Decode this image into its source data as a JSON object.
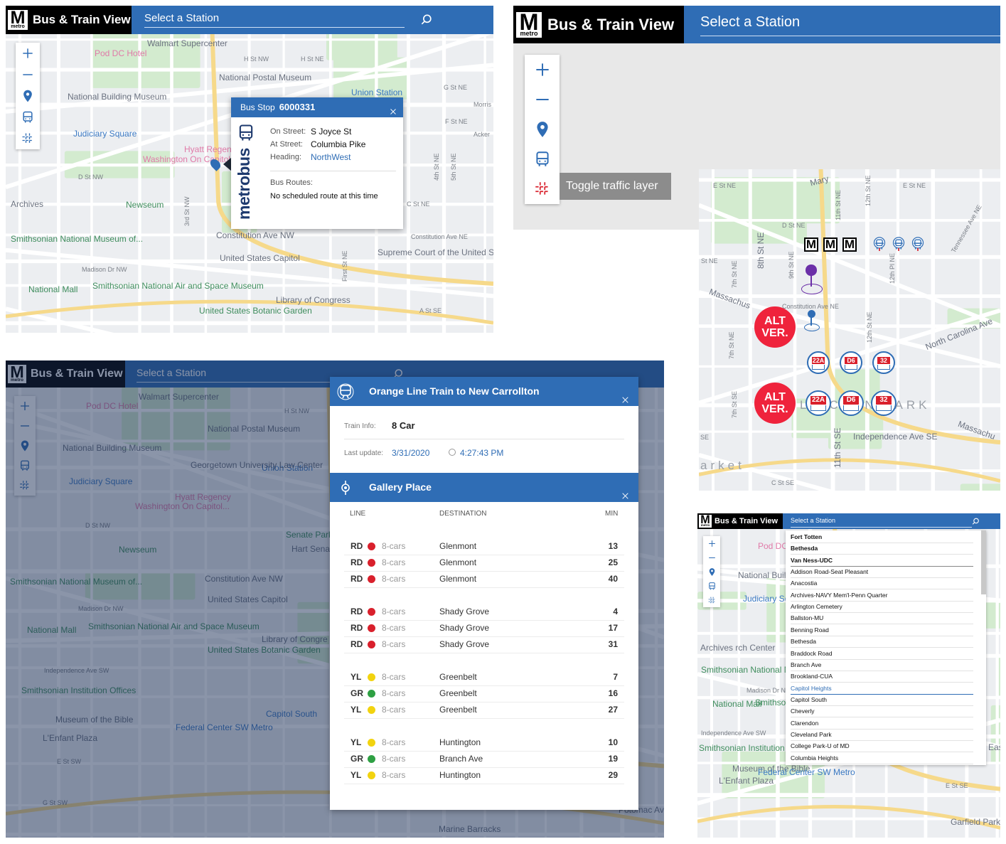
{
  "app": {
    "logo": "M",
    "logo_sub": "metro",
    "title": "Bus & Train View",
    "search_placeholder": "Select a Station"
  },
  "bus_stop_view": {
    "map_labels": [
      "Walmart Supercenter",
      "Pod DC Hotel",
      "H St NW",
      "H St NE",
      "National Postal Museum",
      "Union Station",
      "National Building Museum",
      "Judiciary Square",
      "Hyatt Regency",
      "Washington On Capitol Hill",
      "Newseum",
      "Archives",
      "Smithsonian National Museum of...",
      "Constitution Ave NW",
      "United States Capitol",
      "Supreme Court of the United States",
      "Madison Dr NW",
      "National Mall",
      "Smithsonian National Air and Space Museum",
      "Library of Congress",
      "United States Botanic Garden",
      "D St NW",
      "F St NE",
      "G St NE",
      "C St NE",
      "3rd St NW",
      "First St NE",
      "4th St NE",
      "5th St NE",
      "Constitution Ave NE",
      "A St SE",
      "Morris",
      "Acker"
    ],
    "popup": {
      "title": "Bus Stop",
      "stop_id": "6000331",
      "fields": [
        {
          "label": "On Street:",
          "value": "S Joyce St"
        },
        {
          "label": "At Street:",
          "value": "Columbia Pike"
        },
        {
          "label": "Heading:",
          "value": "NorthWest"
        }
      ],
      "routes_label": "Bus Routes:",
      "routes_text": "No scheduled route at this time",
      "brand": "metrobus"
    }
  },
  "traffic_view": {
    "tooltip": "Toggle traffic layer"
  },
  "marker_view": {
    "map_labels": [
      "E St NE",
      "Mary",
      "11th St NE",
      "12th St NE",
      "E St NE",
      "D St NE",
      "Tennessee Ave NE",
      "St NE",
      "8th St NE",
      "9th St NE",
      "7th St NE",
      "12th Pl NE",
      "Massachus",
      "Constitution Ave NE",
      "North Carolina Ave",
      "7th St NE",
      "12th St NE",
      "LINCOLN PARK",
      "7th St SE",
      "11th St SE",
      "Independence Ave SE",
      "Massachu",
      "C St SE",
      "SE",
      "arket"
    ],
    "alt_labels": [
      "ALT VER.",
      "ALT VER."
    ],
    "route_badge_rows": [
      [
        "22A",
        "D6",
        "32"
      ],
      [
        "22A",
        "D6",
        "32"
      ]
    ]
  },
  "train_view": {
    "map_labels": [
      "Walmart Supercenter",
      "Pod DC Hotel",
      "H St NW",
      "National Postal Museum",
      "Union Station",
      "National Building Museum",
      "Judiciary Square",
      "Georgetown University Law Center",
      "Hyatt Regency",
      "Washington On Capitol...",
      "Newseum",
      "Senate Park",
      "Hart Sena Office Build",
      "Constitution Ave NW",
      "United States Capitol",
      "Smithsonian National Museum of...",
      "Madison Dr NW",
      "National Mall",
      "Smithsonian National Air and Space Museum",
      "United States Botanic Garden",
      "Library of Congre",
      "Independence Ave SW",
      "Smithsonian Institution Offices",
      "Capitol South",
      "Museum of the Bible",
      "Federal Center SW Metro",
      "L'Enfant Plaza",
      "Marine Barracks",
      "Potomac Ave",
      "D St NW",
      "E St SW",
      "G St SW"
    ],
    "train_popup": {
      "title": "Orange Line Train to New Carrollton",
      "train_info_label": "Train Info:",
      "train_info": "8 Car",
      "last_update_label": "Last update:",
      "date": "3/31/2020",
      "time": "4:27:43 PM"
    },
    "station_popup": {
      "name": "Gallery Place",
      "columns": [
        "LINE",
        "DESTINATION",
        "MIN"
      ],
      "groups": [
        [
          {
            "line": "RD",
            "color": "#d9202c",
            "cars": "8-cars",
            "destination": "Glenmont",
            "min": 13
          },
          {
            "line": "RD",
            "color": "#d9202c",
            "cars": "8-cars",
            "destination": "Glenmont",
            "min": 25
          },
          {
            "line": "RD",
            "color": "#d9202c",
            "cars": "8-cars",
            "destination": "Glenmont",
            "min": 40
          }
        ],
        [
          {
            "line": "RD",
            "color": "#d9202c",
            "cars": "8-cars",
            "destination": "Shady Grove",
            "min": 4
          },
          {
            "line": "RD",
            "color": "#d9202c",
            "cars": "8-cars",
            "destination": "Shady Grove",
            "min": 17
          },
          {
            "line": "RD",
            "color": "#d9202c",
            "cars": "8-cars",
            "destination": "Shady Grove",
            "min": 31
          }
        ],
        [
          {
            "line": "YL",
            "color": "#f2d30f",
            "cars": "8-cars",
            "destination": "Greenbelt",
            "min": 7
          },
          {
            "line": "GR",
            "color": "#2ea043",
            "cars": "8-cars",
            "destination": "Greenbelt",
            "min": 16
          },
          {
            "line": "YL",
            "color": "#f2d30f",
            "cars": "8-cars",
            "destination": "Greenbelt",
            "min": 27
          }
        ],
        [
          {
            "line": "YL",
            "color": "#f2d30f",
            "cars": "8-cars",
            "destination": "Huntington",
            "min": 10
          },
          {
            "line": "GR",
            "color": "#2ea043",
            "cars": "8-cars",
            "destination": "Branch Ave",
            "min": 19
          },
          {
            "line": "YL",
            "color": "#f2d30f",
            "cars": "8-cars",
            "destination": "Huntington",
            "min": 29
          }
        ]
      ]
    }
  },
  "station_list_view": {
    "map_labels": [
      "Pod DC Hot",
      "National Buildin Museu",
      "Judiciary Squa",
      "Archives rch Center",
      "Smithsonian National Museum of...",
      "National Mall",
      "Smithson Air and Sp",
      "Independence Ave SW",
      "Smithsonian Institution Offices",
      "Museum of the Bible",
      "Federal Center SW Metro",
      "L'Enfant Plaza",
      "Garfield Park",
      "Madison Dr NW",
      "Eas",
      "E St SE"
    ],
    "stations": [
      "Fort Totten",
      "Bethesda",
      "Van Ness-UDC",
      "Addison Road-Seat Pleasant",
      "Anacostia",
      "Archives-NAVY Mem'l-Penn Quarter",
      "Arlington Cemetery",
      "Ballston-MU",
      "Benning Road",
      "Bethesda",
      "Braddock Road",
      "Branch Ave",
      "Brookland-CUA",
      "Capitol Heights",
      "Capitol South",
      "Cheverly",
      "Clarendon",
      "Cleveland Park",
      "College Park-U of MD",
      "Columbia Heights"
    ]
  }
}
